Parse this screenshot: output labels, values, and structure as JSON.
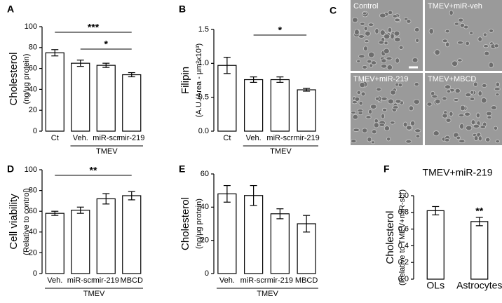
{
  "chart_data": [
    {
      "type": "bar",
      "panel": "A",
      "ylabel": "Cholesterol",
      "ylabel_sub": "(ng/μg protein)",
      "categories": [
        "Ct",
        "Veh.",
        "miR-scr",
        "mir-219"
      ],
      "values": [
        75,
        65,
        63,
        54
      ],
      "errors": [
        3,
        3,
        2,
        2
      ],
      "ylim": [
        0,
        100
      ],
      "yticks": [
        0,
        20,
        40,
        60,
        80,
        100
      ],
      "group": {
        "label": "TMEV",
        "from": 1,
        "to": 3
      },
      "annotations": [
        {
          "text": "***",
          "from": 0,
          "to": 3
        },
        {
          "text": "*",
          "from": 1,
          "to": 3
        }
      ]
    },
    {
      "type": "bar",
      "panel": "B",
      "ylabel": "Filipin",
      "ylabel_sub": "(A.U./Area - μm²x10³)",
      "categories": [
        "Ct",
        "Veh.",
        "miR-scr",
        "mir-219"
      ],
      "values": [
        0.97,
        0.76,
        0.76,
        0.61
      ],
      "errors": [
        0.12,
        0.04,
        0.04,
        0.02
      ],
      "ylim": [
        0,
        1.5
      ],
      "yticks": [
        {
          "value": 0,
          "label": "0.0"
        },
        0.5,
        {
          "value": 1,
          "label": "1.0"
        },
        1.5
      ],
      "group": {
        "label": "TMEV",
        "from": 1,
        "to": 3
      },
      "annotations": [
        {
          "text": "*",
          "from": 1,
          "to": 3
        }
      ]
    },
    {
      "type": "image",
      "panel": "C",
      "images": [
        "Control",
        "TMEV+miR-veh",
        "TMEV+miR-219",
        "TMEV+MBCD"
      ]
    },
    {
      "type": "bar",
      "panel": "D",
      "ylabel": "Cell viability",
      "ylabel_sub": "(Relative to control)",
      "categories": [
        "Veh.",
        "miR-scr",
        "mir-219",
        "MBCD"
      ],
      "values": [
        58,
        61,
        72,
        75
      ],
      "errors": [
        2,
        3,
        5,
        4
      ],
      "ylim": [
        0,
        100
      ],
      "yticks": [
        0,
        20,
        40,
        60,
        80,
        100
      ],
      "group": {
        "label": "TMEV",
        "from": 0,
        "to": 3
      },
      "annotations": [
        {
          "text": "**",
          "from": 0,
          "to": 3
        }
      ]
    },
    {
      "type": "bar",
      "panel": "E",
      "ylabel": "Cholesterol",
      "ylabel_sub": "(ng/μg protein)",
      "categories": [
        "Veh.",
        "miR-scr",
        "mir-219",
        "MBCD"
      ],
      "values": [
        48,
        47,
        36,
        30
      ],
      "errors": [
        5,
        6,
        3,
        5
      ],
      "ylim": [
        0,
        60
      ],
      "yticks": [
        0,
        20,
        40,
        60
      ],
      "group": {
        "label": "TMEV",
        "from": 0,
        "to": 3
      }
    },
    {
      "type": "bar",
      "panel": "F",
      "title": "TMEV+miR-219",
      "ylabel": "Cholesterol",
      "ylabel_sub": "(Relative to TMEV+miR-scr)",
      "categories": [
        "OLs",
        "Astrocytes"
      ],
      "values": [
        0.82,
        0.69
      ],
      "errors": [
        0.05,
        0.05
      ],
      "ylim": [
        0,
        1
      ],
      "yticks": [
        {
          "value": 0,
          "label": "0.0"
        },
        0.2,
        0.4,
        0.6,
        0.8,
        {
          "value": 1,
          "label": "1.0"
        }
      ],
      "annotations": [
        {
          "text": "**",
          "from": 1,
          "to": 1
        }
      ]
    }
  ]
}
